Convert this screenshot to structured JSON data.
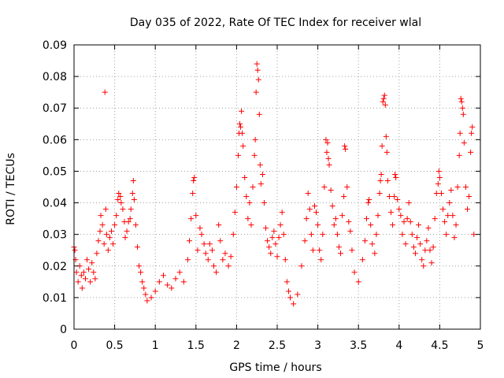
{
  "chart_data": {
    "type": "scatter",
    "title": "Day 035 of 2022, Rate Of TEC Index for receiver wlal",
    "xlabel": "GPS time / hours",
    "ylabel": "ROTI / TECUs",
    "xlim": [
      0,
      5
    ],
    "ylim": [
      0,
      0.09
    ],
    "xticks": [
      0,
      0.5,
      1,
      1.5,
      2,
      2.5,
      3,
      3.5,
      4,
      4.5,
      5
    ],
    "xtick_labels": [
      "0",
      "0.5",
      "1",
      "1.5",
      "2",
      "2.5",
      "3",
      "3.5",
      "4",
      "4.5",
      "5"
    ],
    "yticks": [
      0,
      0.01,
      0.02,
      0.03,
      0.04,
      0.05,
      0.06,
      0.07,
      0.08,
      0.09
    ],
    "ytick_labels": [
      "0",
      "0.01",
      "0.02",
      "0.03",
      "0.04",
      "0.05",
      "0.06",
      "0.07",
      "0.08",
      "0.09"
    ],
    "grid": true,
    "marker": "+",
    "series": [
      {
        "name": "ROTI",
        "color": "#ff0000",
        "points": [
          [
            0.0,
            0.026
          ],
          [
            0.01,
            0.025
          ],
          [
            0.02,
            0.022
          ],
          [
            0.03,
            0.018
          ],
          [
            0.05,
            0.015
          ],
          [
            0.07,
            0.02
          ],
          [
            0.09,
            0.017
          ],
          [
            0.1,
            0.013
          ],
          [
            0.12,
            0.018
          ],
          [
            0.14,
            0.016
          ],
          [
            0.16,
            0.022
          ],
          [
            0.18,
            0.019
          ],
          [
            0.2,
            0.015
          ],
          [
            0.22,
            0.021
          ],
          [
            0.24,
            0.018
          ],
          [
            0.26,
            0.016
          ],
          [
            0.28,
            0.024
          ],
          [
            0.3,
            0.028
          ],
          [
            0.32,
            0.031
          ],
          [
            0.33,
            0.036
          ],
          [
            0.35,
            0.033
          ],
          [
            0.37,
            0.027
          ],
          [
            0.38,
            0.075
          ],
          [
            0.39,
            0.038
          ],
          [
            0.4,
            0.03
          ],
          [
            0.42,
            0.025
          ],
          [
            0.44,
            0.029
          ],
          [
            0.46,
            0.031
          ],
          [
            0.48,
            0.027
          ],
          [
            0.5,
            0.033
          ],
          [
            0.52,
            0.036
          ],
          [
            0.54,
            0.041
          ],
          [
            0.55,
            0.043
          ],
          [
            0.57,
            0.042
          ],
          [
            0.58,
            0.04
          ],
          [
            0.6,
            0.038
          ],
          [
            0.62,
            0.034
          ],
          [
            0.63,
            0.029
          ],
          [
            0.65,
            0.031
          ],
          [
            0.67,
            0.034
          ],
          [
            0.69,
            0.035
          ],
          [
            0.7,
            0.038
          ],
          [
            0.72,
            0.043
          ],
          [
            0.73,
            0.047
          ],
          [
            0.74,
            0.041
          ],
          [
            0.76,
            0.033
          ],
          [
            0.78,
            0.026
          ],
          [
            0.8,
            0.02
          ],
          [
            0.82,
            0.018
          ],
          [
            0.84,
            0.015
          ],
          [
            0.86,
            0.013
          ],
          [
            0.88,
            0.011
          ],
          [
            0.9,
            0.009
          ],
          [
            0.95,
            0.01
          ],
          [
            1.0,
            0.012
          ],
          [
            1.05,
            0.015
          ],
          [
            1.1,
            0.017
          ],
          [
            1.15,
            0.014
          ],
          [
            1.2,
            0.013
          ],
          [
            1.25,
            0.016
          ],
          [
            1.3,
            0.018
          ],
          [
            1.35,
            0.015
          ],
          [
            1.4,
            0.022
          ],
          [
            1.42,
            0.028
          ],
          [
            1.44,
            0.035
          ],
          [
            1.46,
            0.043
          ],
          [
            1.47,
            0.047
          ],
          [
            1.48,
            0.048
          ],
          [
            1.5,
            0.036
          ],
          [
            1.52,
            0.025
          ],
          [
            1.55,
            0.032
          ],
          [
            1.57,
            0.03
          ],
          [
            1.6,
            0.027
          ],
          [
            1.62,
            0.024
          ],
          [
            1.65,
            0.022
          ],
          [
            1.67,
            0.027
          ],
          [
            1.7,
            0.025
          ],
          [
            1.72,
            0.02
          ],
          [
            1.75,
            0.018
          ],
          [
            1.78,
            0.033
          ],
          [
            1.8,
            0.028
          ],
          [
            1.83,
            0.022
          ],
          [
            1.86,
            0.024
          ],
          [
            1.9,
            0.02
          ],
          [
            1.93,
            0.023
          ],
          [
            1.96,
            0.03
          ],
          [
            1.98,
            0.037
          ],
          [
            2.0,
            0.045
          ],
          [
            2.02,
            0.055
          ],
          [
            2.03,
            0.062
          ],
          [
            2.04,
            0.065
          ],
          [
            2.05,
            0.064
          ],
          [
            2.06,
            0.069
          ],
          [
            2.07,
            0.062
          ],
          [
            2.08,
            0.058
          ],
          [
            2.1,
            0.048
          ],
          [
            2.12,
            0.042
          ],
          [
            2.14,
            0.035
          ],
          [
            2.16,
            0.04
          ],
          [
            2.18,
            0.033
          ],
          [
            2.2,
            0.045
          ],
          [
            2.22,
            0.055
          ],
          [
            2.23,
            0.06
          ],
          [
            2.24,
            0.075
          ],
          [
            2.25,
            0.084
          ],
          [
            2.26,
            0.082
          ],
          [
            2.27,
            0.079
          ],
          [
            2.28,
            0.068
          ],
          [
            2.29,
            0.052
          ],
          [
            2.3,
            0.046
          ],
          [
            2.32,
            0.049
          ],
          [
            2.34,
            0.04
          ],
          [
            2.36,
            0.032
          ],
          [
            2.38,
            0.028
          ],
          [
            2.4,
            0.026
          ],
          [
            2.42,
            0.024
          ],
          [
            2.44,
            0.029
          ],
          [
            2.46,
            0.031
          ],
          [
            2.48,
            0.027
          ],
          [
            2.5,
            0.023
          ],
          [
            2.52,
            0.029
          ],
          [
            2.54,
            0.033
          ],
          [
            2.56,
            0.037
          ],
          [
            2.58,
            0.03
          ],
          [
            2.6,
            0.022
          ],
          [
            2.62,
            0.015
          ],
          [
            2.64,
            0.012
          ],
          [
            2.66,
            0.01
          ],
          [
            2.7,
            0.008
          ],
          [
            2.75,
            0.011
          ],
          [
            2.8,
            0.02
          ],
          [
            2.84,
            0.028
          ],
          [
            2.86,
            0.035
          ],
          [
            2.88,
            0.043
          ],
          [
            2.9,
            0.038
          ],
          [
            2.92,
            0.03
          ],
          [
            2.94,
            0.025
          ],
          [
            2.96,
            0.039
          ],
          [
            2.98,
            0.037
          ],
          [
            3.0,
            0.033
          ],
          [
            3.02,
            0.025
          ],
          [
            3.04,
            0.022
          ],
          [
            3.06,
            0.03
          ],
          [
            3.08,
            0.045
          ],
          [
            3.1,
            0.06
          ],
          [
            3.11,
            0.056
          ],
          [
            3.12,
            0.059
          ],
          [
            3.13,
            0.054
          ],
          [
            3.14,
            0.052
          ],
          [
            3.16,
            0.044
          ],
          [
            3.18,
            0.039
          ],
          [
            3.2,
            0.033
          ],
          [
            3.22,
            0.035
          ],
          [
            3.24,
            0.03
          ],
          [
            3.26,
            0.026
          ],
          [
            3.28,
            0.024
          ],
          [
            3.3,
            0.036
          ],
          [
            3.32,
            0.042
          ],
          [
            3.33,
            0.058
          ],
          [
            3.34,
            0.057
          ],
          [
            3.36,
            0.045
          ],
          [
            3.38,
            0.034
          ],
          [
            3.4,
            0.031
          ],
          [
            3.42,
            0.025
          ],
          [
            3.45,
            0.018
          ],
          [
            3.5,
            0.015
          ],
          [
            3.55,
            0.022
          ],
          [
            3.58,
            0.028
          ],
          [
            3.6,
            0.035
          ],
          [
            3.62,
            0.04
          ],
          [
            3.63,
            0.041
          ],
          [
            3.65,
            0.033
          ],
          [
            3.67,
            0.027
          ],
          [
            3.7,
            0.024
          ],
          [
            3.72,
            0.03
          ],
          [
            3.74,
            0.036
          ],
          [
            3.76,
            0.043
          ],
          [
            3.77,
            0.047
          ],
          [
            3.78,
            0.049
          ],
          [
            3.79,
            0.058
          ],
          [
            3.8,
            0.072
          ],
          [
            3.81,
            0.073
          ],
          [
            3.82,
            0.074
          ],
          [
            3.83,
            0.071
          ],
          [
            3.84,
            0.061
          ],
          [
            3.85,
            0.056
          ],
          [
            3.86,
            0.047
          ],
          [
            3.88,
            0.042
          ],
          [
            3.9,
            0.037
          ],
          [
            3.92,
            0.033
          ],
          [
            3.94,
            0.042
          ],
          [
            3.95,
            0.049
          ],
          [
            3.96,
            0.048
          ],
          [
            3.98,
            0.041
          ],
          [
            4.0,
            0.038
          ],
          [
            4.02,
            0.036
          ],
          [
            4.04,
            0.03
          ],
          [
            4.06,
            0.034
          ],
          [
            4.08,
            0.027
          ],
          [
            4.1,
            0.035
          ],
          [
            4.12,
            0.04
          ],
          [
            4.14,
            0.034
          ],
          [
            4.16,
            0.03
          ],
          [
            4.18,
            0.026
          ],
          [
            4.2,
            0.024
          ],
          [
            4.22,
            0.029
          ],
          [
            4.24,
            0.033
          ],
          [
            4.26,
            0.027
          ],
          [
            4.28,
            0.022
          ],
          [
            4.3,
            0.02
          ],
          [
            4.32,
            0.025
          ],
          [
            4.34,
            0.028
          ],
          [
            4.36,
            0.032
          ],
          [
            4.38,
            0.025
          ],
          [
            4.4,
            0.021
          ],
          [
            4.42,
            0.026
          ],
          [
            4.44,
            0.035
          ],
          [
            4.46,
            0.043
          ],
          [
            4.48,
            0.046
          ],
          [
            4.49,
            0.05
          ],
          [
            4.5,
            0.048
          ],
          [
            4.52,
            0.043
          ],
          [
            4.54,
            0.038
          ],
          [
            4.56,
            0.034
          ],
          [
            4.58,
            0.03
          ],
          [
            4.6,
            0.036
          ],
          [
            4.62,
            0.04
          ],
          [
            4.64,
            0.044
          ],
          [
            4.66,
            0.036
          ],
          [
            4.68,
            0.029
          ],
          [
            4.7,
            0.033
          ],
          [
            4.72,
            0.045
          ],
          [
            4.74,
            0.055
          ],
          [
            4.75,
            0.062
          ],
          [
            4.76,
            0.073
          ],
          [
            4.77,
            0.072
          ],
          [
            4.78,
            0.07
          ],
          [
            4.79,
            0.068
          ],
          [
            4.8,
            0.059
          ],
          [
            4.82,
            0.045
          ],
          [
            4.84,
            0.038
          ],
          [
            4.86,
            0.042
          ],
          [
            4.88,
            0.056
          ],
          [
            4.89,
            0.062
          ],
          [
            4.9,
            0.064
          ],
          [
            4.92,
            0.03
          ]
        ]
      }
    ]
  }
}
